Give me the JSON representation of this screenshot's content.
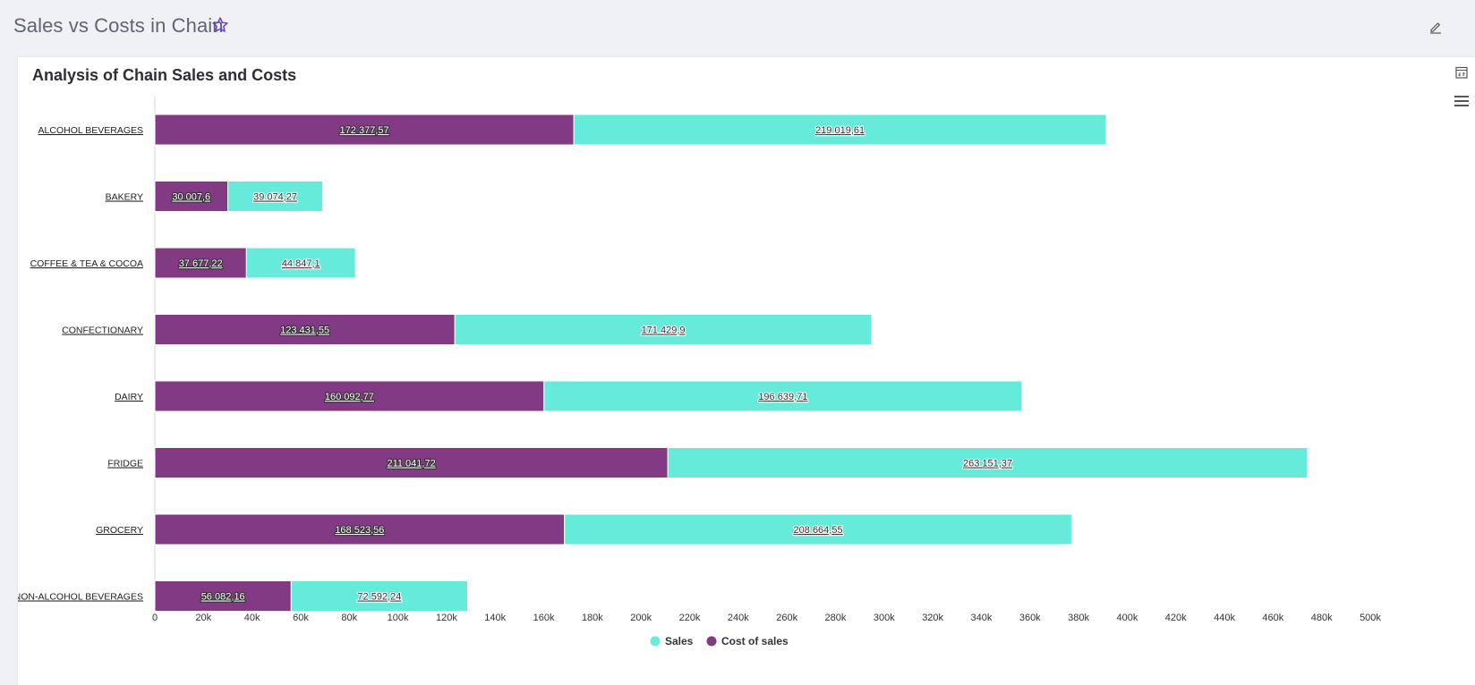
{
  "page": {
    "title": "Sales vs Costs in Chain",
    "star_icon": "star-outline-icon",
    "edit_icon": "pencil-icon"
  },
  "card": {
    "title": "Analysis of Chain Sales and Costs",
    "tools": [
      "calendar-compare-icon",
      "hamburger-menu-icon"
    ]
  },
  "chart_data": {
    "type": "bar",
    "orientation": "horizontal",
    "stacked": true,
    "title": "Analysis of Chain Sales and Costs",
    "xlabel": "",
    "ylabel": "",
    "categories": [
      "ALCOHOL BEVERAGES",
      "BAKERY",
      "COFFEE & TEA & COCOA",
      "CONFECTIONARY",
      "DAIRY",
      "FRIDGE",
      "GROCERY",
      "NON-ALCOHOL BEVERAGES"
    ],
    "series": [
      {
        "name": "Cost of sales",
        "color": "#833a85",
        "values": [
          172377.57,
          30007.6,
          37677.22,
          123431.55,
          160092.77,
          211041.72,
          168523.56,
          56082.16
        ],
        "labels": [
          "172 377,57",
          "30 007,6",
          "37 677,22",
          "123 431,55",
          "160 092,77",
          "211 041,72",
          "168 523,56",
          "56 082,16"
        ]
      },
      {
        "name": "Sales",
        "color": "#66ebda",
        "values": [
          219019.61,
          39074.27,
          44847.1,
          171429.9,
          196639.71,
          263151.37,
          208664.55,
          72592.24
        ],
        "labels": [
          "219 019,61",
          "39 074,27",
          "44 847,1",
          "171 429,9",
          "196 639,71",
          "263 151,37",
          "208 664,55",
          "72 592,24"
        ]
      }
    ],
    "xlim": [
      0,
      500000
    ],
    "xticks": [
      "0",
      "20k",
      "40k",
      "60k",
      "80k",
      "100k",
      "120k",
      "140k",
      "160k",
      "180k",
      "200k",
      "220k",
      "240k",
      "260k",
      "280k",
      "300k",
      "320k",
      "340k",
      "360k",
      "380k",
      "400k",
      "420k",
      "440k",
      "460k",
      "480k",
      "500k"
    ],
    "grid": false,
    "legend": {
      "position": "bottom",
      "entries": [
        {
          "name": "Sales",
          "color": "#66ebda"
        },
        {
          "name": "Cost of sales",
          "color": "#833a85"
        }
      ]
    }
  }
}
